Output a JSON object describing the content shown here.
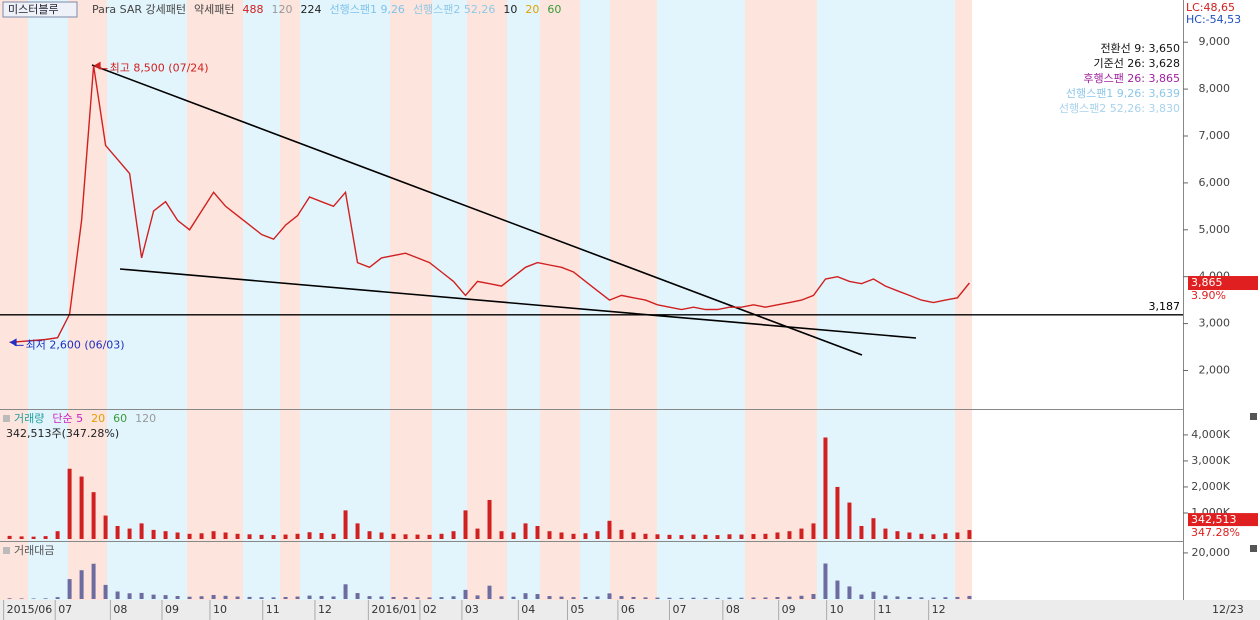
{
  "chart_data": [
    {
      "type": "line",
      "title": "미스터블루",
      "legend_items": [
        {
          "text": "Para SAR 강세패턴",
          "color": "#444444"
        },
        {
          "text": "약세패턴",
          "color": "#444444"
        },
        {
          "text": "488",
          "color": "#d02020"
        },
        {
          "text": "120",
          "color": "#999999"
        },
        {
          "text": "224",
          "color": "#222222"
        },
        {
          "text": "선행스팬1 9,26",
          "color": "#7ec3ec"
        },
        {
          "text": "선행스팬2 52,26",
          "color": "#8fc8e8"
        },
        {
          "text": "10",
          "color": "#222222"
        },
        {
          "text": "20",
          "color": "#e0a000"
        },
        {
          "text": "60",
          "color": "#3a9a3a"
        }
      ],
      "corner_labels": [
        {
          "text": "LC:48,65",
          "color": "#d02020"
        },
        {
          "text": "HC:-54,53",
          "color": "#2050c0"
        }
      ],
      "indicators": [
        {
          "text": "전환선 9: 3,650",
          "color": "#111111"
        },
        {
          "text": "기준선 26: 3,628",
          "color": "#111111"
        },
        {
          "text": "후행스팬 26: 3,865",
          "color": "#a020a0"
        },
        {
          "text": "선행스팬1 9,26: 3,639",
          "color": "#8cc6ea"
        },
        {
          "text": "선행스팬2 52,26: 3,830",
          "color": "#a8d2ec"
        }
      ],
      "annotations": [
        {
          "text": "최고 8,500 (07/24)",
          "x": 7,
          "y": 8500,
          "color": "#d02020"
        },
        {
          "text": "최저 2,600 (06/03)",
          "x": 0,
          "y": 2600,
          "color": "#2030c0"
        }
      ],
      "hline": {
        "value": 3187,
        "label": "3,187"
      },
      "current_price": {
        "value": 3865,
        "label": "3,865",
        "change": "3.90%"
      },
      "cursor_date": "12/23",
      "x": [
        0,
        1,
        2,
        3,
        4,
        5,
        6,
        7,
        8,
        9,
        10,
        11,
        12,
        13,
        14,
        15,
        16,
        17,
        18,
        19,
        20,
        21,
        22,
        23,
        24,
        25,
        26,
        27,
        28,
        29,
        30,
        31,
        32,
        33,
        34,
        35,
        36,
        37,
        38,
        39,
        40,
        41,
        42,
        43,
        44,
        45,
        46,
        47,
        48,
        49,
        50,
        51,
        52,
        53,
        54,
        55,
        56,
        57,
        58,
        59,
        60,
        61,
        62,
        63,
        64,
        65,
        66,
        67,
        68,
        69,
        70,
        71,
        72,
        73,
        74,
        75,
        76,
        77,
        78,
        79,
        80
      ],
      "xlim": [
        -0.8,
        97.8
      ],
      "xticks": [
        {
          "value": -0.5,
          "label": "2015/06"
        },
        {
          "value": 3.8,
          "label": "07"
        },
        {
          "value": 8.4,
          "label": "08"
        },
        {
          "value": 12.7,
          "label": "09"
        },
        {
          "value": 16.7,
          "label": "10"
        },
        {
          "value": 21.1,
          "label": "11"
        },
        {
          "value": 25.45,
          "label": "12"
        },
        {
          "value": 29.9,
          "label": "2016/01"
        },
        {
          "value": 34.2,
          "label": "02"
        },
        {
          "value": 37.7,
          "label": "03"
        },
        {
          "value": 42.4,
          "label": "04"
        },
        {
          "value": 46.5,
          "label": "05"
        },
        {
          "value": 50.7,
          "label": "06"
        },
        {
          "value": 55.0,
          "label": "07"
        },
        {
          "value": 59.45,
          "label": "08"
        },
        {
          "value": 64.1,
          "label": "09"
        },
        {
          "value": 68.1,
          "label": "10"
        },
        {
          "value": 72.1,
          "label": "11"
        },
        {
          "value": 76.6,
          "label": "12"
        }
      ],
      "ylim": [
        1200,
        9900
      ],
      "yticks": [
        {
          "value": 2000,
          "label": "2,000"
        },
        {
          "value": 3000,
          "label": "3,000"
        },
        {
          "value": 4000,
          "label": "4,000"
        },
        {
          "value": 5000,
          "label": "5,000"
        },
        {
          "value": 6000,
          "label": "6,000"
        },
        {
          "value": 7000,
          "label": "7,000"
        },
        {
          "value": 8000,
          "label": "8,000"
        },
        {
          "value": 9000,
          "label": "9,000"
        }
      ],
      "series": [
        {
          "color": "#d02020",
          "values": [
            2600,
            2620,
            2640,
            2660,
            2700,
            3200,
            5200,
            8500,
            6800,
            6500,
            6200,
            4400,
            5400,
            5600,
            5200,
            5000,
            5400,
            5800,
            5500,
            5300,
            5100,
            4900,
            4800,
            5100,
            5300,
            5700,
            5600,
            5500,
            5800,
            4300,
            4200,
            4400,
            4450,
            4500,
            4400,
            4300,
            4100,
            3900,
            3600,
            3900,
            3850,
            3800,
            4000,
            4200,
            4300,
            4250,
            4200,
            4100,
            3900,
            3700,
            3500,
            3600,
            3550,
            3500,
            3400,
            3350,
            3300,
            3350,
            3300,
            3300,
            3350,
            3350,
            3400,
            3350,
            3400,
            3450,
            3500,
            3600,
            3950,
            4000,
            3900,
            3850,
            3950,
            3800,
            3700,
            3600,
            3500,
            3450,
            3500,
            3550,
            3865
          ]
        }
      ]
    },
    {
      "type": "bar",
      "title": "거래량",
      "legend_items": [
        {
          "text": "단순 5",
          "color": "#d020c0"
        },
        {
          "text": "20",
          "color": "#e0a000"
        },
        {
          "text": "60",
          "color": "#3a9a3a"
        },
        {
          "text": "120",
          "color": "#999999"
        }
      ],
      "title_color": "#20a0a0",
      "subtitle": "342,513주(347.28%)",
      "current_volume": {
        "value": 342513,
        "label": "342,513",
        "ratio": "347.28%"
      },
      "ylim": [
        0,
        4880000
      ],
      "yticks": [
        {
          "value": 1000000,
          "label": "1,000K"
        },
        {
          "value": 2000000,
          "label": "2,000K"
        },
        {
          "value": 3000000,
          "label": "3,000K"
        },
        {
          "value": 4000000,
          "label": "4,000K"
        }
      ],
      "color": "#d02020",
      "values": [
        120000,
        100000,
        90000,
        110000,
        300000,
        2700000,
        2400000,
        1800000,
        900000,
        500000,
        400000,
        600000,
        350000,
        300000,
        250000,
        200000,
        220000,
        300000,
        250000,
        200000,
        180000,
        160000,
        150000,
        170000,
        200000,
        260000,
        230000,
        200000,
        1100000,
        600000,
        300000,
        250000,
        200000,
        180000,
        170000,
        160000,
        200000,
        300000,
        1100000,
        400000,
        1500000,
        300000,
        250000,
        600000,
        500000,
        300000,
        250000,
        200000,
        220000,
        300000,
        700000,
        350000,
        250000,
        200000,
        180000,
        160000,
        150000,
        170000,
        160000,
        150000,
        180000,
        170000,
        190000,
        200000,
        250000,
        300000,
        400000,
        600000,
        3900000,
        2000000,
        1400000,
        500000,
        800000,
        400000,
        300000,
        250000,
        200000,
        180000,
        220000,
        250000,
        342513
      ]
    },
    {
      "type": "bar",
      "title": "거래대금",
      "title_color": "#555555",
      "ylim": [
        0,
        24300
      ],
      "yticks": [
        {
          "value": 20000,
          "label": "20,000"
        }
      ],
      "color": "#6c6ca0",
      "values": [
        312,
        262,
        238,
        293,
        810,
        8640,
        12480,
        15300,
        6120,
        3250,
        2480,
        2640,
        1890,
        1680,
        1300,
        1000,
        1190,
        1740,
        1380,
        1060,
        920,
        780,
        720,
        870,
        1060,
        1480,
        1290,
        1100,
        6380,
        2580,
        1260,
        1100,
        890,
        810,
        750,
        690,
        820,
        1170,
        3960,
        1560,
        5780,
        1140,
        1000,
        2520,
        2150,
        1280,
        1050,
        820,
        860,
        1110,
        2450,
        1260,
        890,
        700,
        610,
        540,
        500,
        570,
        530,
        500,
        600,
        570,
        650,
        670,
        850,
        1040,
        1400,
        2160,
        15400,
        8000,
        5460,
        1930,
        3160,
        1520,
        1110,
        900,
        700,
        620,
        770,
        890,
        1320
      ]
    }
  ]
}
